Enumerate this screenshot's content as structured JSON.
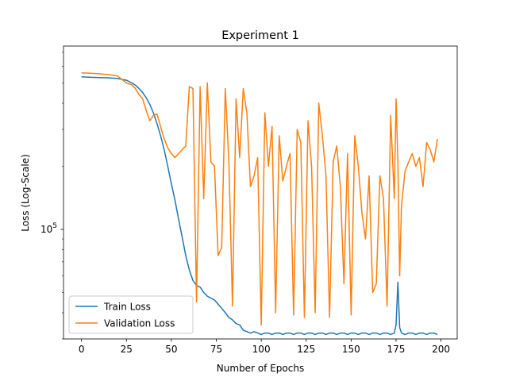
{
  "chart_data": {
    "type": "line",
    "title": "Experiment 1",
    "xlabel": "Number of Epochs",
    "ylabel": "Loss (Log-Scale)",
    "y_scale": "log",
    "xlim": [
      -10,
      209
    ],
    "ylim": [
      30000,
      750000
    ],
    "x_ticks": [
      0,
      25,
      50,
      75,
      100,
      125,
      150,
      175,
      200
    ],
    "x_tick_labels": [
      "0",
      "25",
      "50",
      "75",
      "100",
      "125",
      "150",
      "175",
      "200"
    ],
    "y_ticks": [
      100000
    ],
    "y_tick_labels": [
      "10^5"
    ],
    "legend_position": "lower-left",
    "grid": false,
    "x": [
      0,
      5,
      10,
      15,
      20,
      25,
      28,
      30,
      32,
      34,
      36,
      38,
      40,
      42,
      44,
      46,
      48,
      50,
      52,
      54,
      56,
      58,
      60,
      62,
      64,
      66,
      68,
      70,
      72,
      74,
      76,
      78,
      80,
      82,
      84,
      86,
      88,
      90,
      92,
      94,
      96,
      98,
      100,
      102,
      104,
      106,
      108,
      110,
      112,
      114,
      116,
      118,
      120,
      122,
      124,
      126,
      128,
      130,
      132,
      134,
      136,
      138,
      140,
      142,
      144,
      146,
      148,
      150,
      152,
      154,
      156,
      158,
      160,
      162,
      164,
      166,
      168,
      170,
      172,
      174,
      175,
      176,
      177,
      178,
      180,
      182,
      184,
      186,
      188,
      190,
      192,
      194,
      196,
      198
    ],
    "series": [
      {
        "name": "Train Loss",
        "color": "#1f77b4",
        "values": [
          535000,
          532000,
          530000,
          529000,
          525000,
          515000,
          500000,
          488000,
          470000,
          450000,
          425000,
          395000,
          360000,
          320000,
          280000,
          240000,
          200000,
          165000,
          138000,
          112000,
          92000,
          75000,
          64000,
          57000,
          54000,
          53000,
          50000,
          48000,
          47000,
          46000,
          44000,
          42000,
          40000,
          38000,
          37000,
          35500,
          35000,
          33000,
          32500,
          32000,
          32500,
          32000,
          31500,
          32000,
          32000,
          31500,
          32000,
          32000,
          31500,
          32000,
          32000,
          31500,
          32000,
          32000,
          31500,
          32000,
          32000,
          31500,
          32000,
          32000,
          31500,
          32000,
          32000,
          31500,
          32000,
          32000,
          31500,
          32000,
          32000,
          31500,
          32000,
          32000,
          31500,
          32000,
          32000,
          31500,
          32000,
          32000,
          31500,
          32000,
          35000,
          56000,
          34000,
          32000,
          31500,
          32000,
          32000,
          31500,
          32000,
          32000,
          31500,
          32000,
          32000,
          31500
        ]
      },
      {
        "name": "Validation Loss",
        "color": "#ff7f0e",
        "values": [
          558000,
          556000,
          553000,
          548000,
          540000,
          500000,
          490000,
          470000,
          440000,
          420000,
          370000,
          330000,
          350000,
          355000,
          310000,
          270000,
          245000,
          230000,
          220000,
          230000,
          240000,
          250000,
          480000,
          470000,
          45000,
          480000,
          140000,
          500000,
          210000,
          200000,
          75000,
          82000,
          470000,
          210000,
          43000,
          420000,
          220000,
          470000,
          360000,
          160000,
          180000,
          220000,
          35000,
          360000,
          200000,
          310000,
          40000,
          280000,
          170000,
          200000,
          230000,
          39000,
          300000,
          260000,
          38000,
          330000,
          200000,
          40000,
          400000,
          280000,
          180000,
          38000,
          210000,
          250000,
          160000,
          55000,
          230000,
          39000,
          280000,
          200000,
          120000,
          90000,
          180000,
          50000,
          55000,
          180000,
          140000,
          43000,
          350000,
          140000,
          420000,
          210000,
          60000,
          130000,
          190000,
          210000,
          230000,
          200000,
          220000,
          160000,
          260000,
          240000,
          210000,
          270000
        ]
      }
    ]
  }
}
